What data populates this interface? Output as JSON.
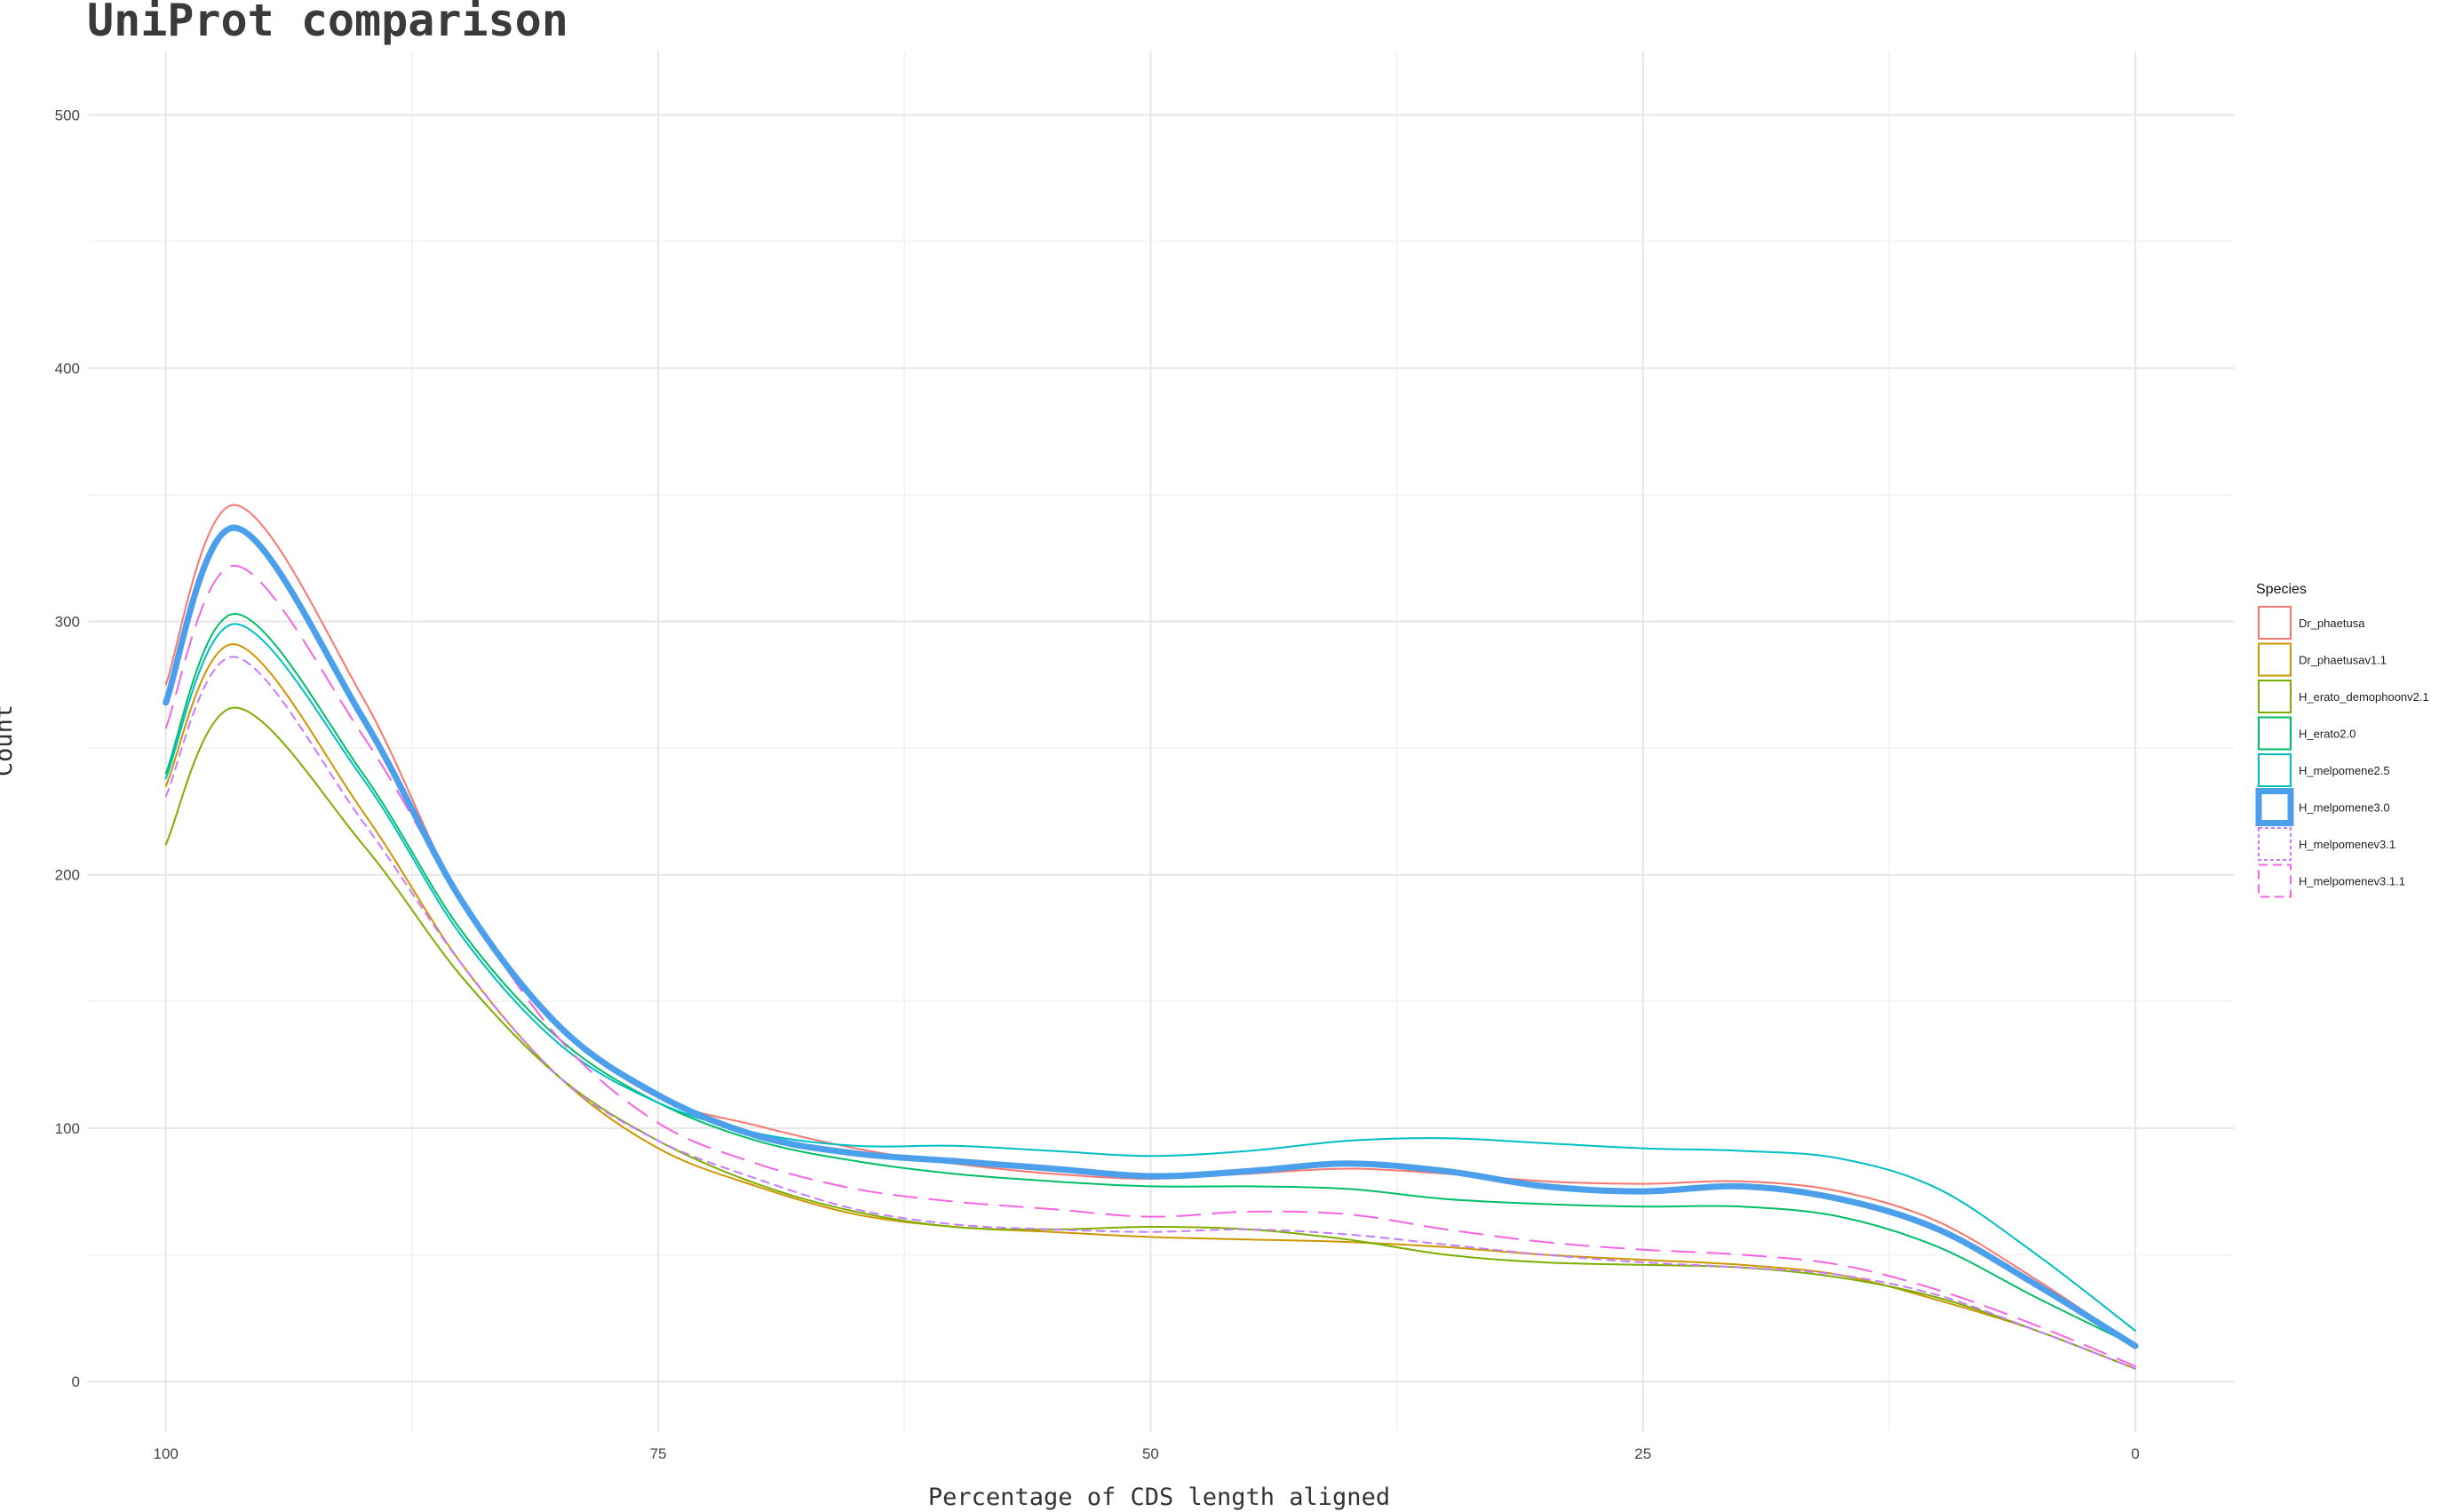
{
  "chart_data": {
    "type": "line",
    "title": "UniProt comparison",
    "xlabel": "Percentage of CDS length aligned",
    "ylabel": "Count",
    "x_reversed": true,
    "xlim": [
      104,
      -5
    ],
    "ylim": [
      -20,
      525
    ],
    "x_ticks": [
      100,
      75,
      50,
      25,
      0
    ],
    "x_tick_labels": [
      "100",
      "75",
      "50",
      "25",
      "0"
    ],
    "y_ticks": [
      0,
      100,
      200,
      300,
      400,
      500
    ],
    "y_tick_labels": [
      "0",
      "100",
      "200",
      "300",
      "400",
      "500"
    ],
    "grid": true,
    "legend": {
      "title": "Species",
      "position": "right"
    },
    "x": [
      100,
      96.5,
      90,
      85,
      80,
      75,
      70,
      65,
      60,
      55,
      50,
      45,
      40,
      35,
      30,
      25,
      20,
      15,
      10,
      5,
      0
    ],
    "series": [
      {
        "name": "Dr_phaetusa",
        "color": "#F8766D",
        "dash": "solid",
        "width": 2,
        "values": [
          275,
          346,
          270,
          190,
          140,
          112,
          101,
          92,
          86,
          82,
          80,
          82,
          84,
          82,
          79,
          78,
          79,
          75,
          63,
          40,
          14
        ]
      },
      {
        "name": "Dr_phaetusav1.1",
        "color": "#CD9600",
        "dash": "solid",
        "width": 2,
        "values": [
          235,
          291,
          225,
          165,
          120,
          92,
          77,
          66,
          61,
          59,
          57,
          56,
          55,
          53,
          50,
          48,
          46,
          42,
          32,
          20,
          5
        ]
      },
      {
        "name": "H_erato_demophoonv2.1",
        "color": "#7CAE00",
        "dash": "solid",
        "width": 2,
        "values": [
          212,
          266,
          212,
          160,
          120,
          95,
          78,
          67,
          61,
          60,
          61,
          60,
          56,
          50,
          47,
          46,
          45,
          41,
          33,
          20,
          5
        ]
      },
      {
        "name": "H_erato2.0",
        "color": "#00BE67",
        "dash": "solid",
        "width": 2,
        "values": [
          240,
          303,
          240,
          178,
          135,
          110,
          95,
          87,
          82,
          79,
          77,
          77,
          76,
          72,
          70,
          69,
          69,
          65,
          53,
          33,
          14
        ]
      },
      {
        "name": "H_melpomene2.5",
        "color": "#00BFC4",
        "dash": "solid",
        "width": 2,
        "values": [
          238,
          299,
          238,
          176,
          133,
          110,
          98,
          93,
          93,
          91,
          89,
          91,
          95,
          96,
          94,
          92,
          91,
          88,
          76,
          50,
          20
        ]
      },
      {
        "name": "H_melpomene3.0",
        "color": "#4C9FEA",
        "dash": "solid",
        "width": 7,
        "values": [
          268,
          337,
          262,
          190,
          140,
          113,
          97,
          90,
          87,
          84,
          81,
          83,
          86,
          83,
          77,
          75,
          77,
          72,
          60,
          38,
          14
        ]
      },
      {
        "name": "H_melpomenev3.1",
        "color": "#C77CFF",
        "dash": "dotted",
        "width": 2,
        "values": [
          231,
          286,
          221,
          165,
          120,
          95,
          80,
          68,
          62,
          60,
          59,
          60,
          58,
          54,
          50,
          47,
          45,
          42,
          34,
          20,
          5
        ]
      },
      {
        "name": "H_melpomenev3.1.1",
        "color": "#F564E3",
        "dash": "dashed",
        "width": 2,
        "values": [
          258,
          322,
          255,
          190,
          135,
          102,
          86,
          76,
          71,
          68,
          65,
          67,
          66,
          60,
          55,
          52,
          50,
          46,
          36,
          22,
          6
        ]
      }
    ]
  }
}
